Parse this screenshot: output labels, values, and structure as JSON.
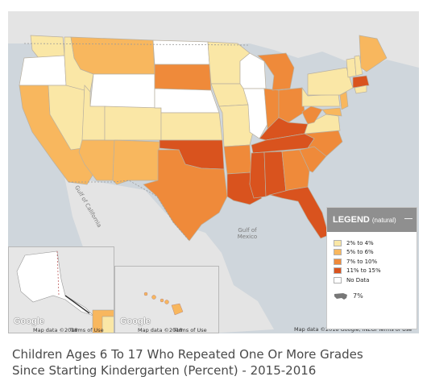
{
  "map": {
    "water_labels": {
      "gulf_mexico": "Gulf of\nMexico",
      "gulf_california": "Gulf of California"
    },
    "attribution_main": "Map data ©2018 Google, INEGI   Terms of Use",
    "attribution_ak": "Map data ©2018",
    "attribution_hi": "Map data ©2018",
    "terms_ak": "Terms of Use",
    "terms_hi": "Terms of Use",
    "google_logo": "Google",
    "colors": {
      "c1": "#fae7a6",
      "c2": "#f8b75e",
      "c3": "#ef8a3a",
      "c4": "#d9531e",
      "nodata": "#ffffff"
    }
  },
  "legend": {
    "title": "LEGEND",
    "subtitle": "(natural)",
    "collapse_icon": "minus-icon",
    "items": [
      {
        "label": "2% to 4%",
        "color": "#fae7a6"
      },
      {
        "label": "5% to 6%",
        "color": "#f8b75e"
      },
      {
        "label": "7% to 10%",
        "color": "#ef8a3a"
      },
      {
        "label": "11% to 15%",
        "color": "#d9531e"
      },
      {
        "label": "No Data",
        "color": "#ffffff"
      }
    ],
    "us_average": "7%",
    "us_icon": "us-map-icon"
  },
  "caption": {
    "line1": "Children Ages 6 To 17 Who Repeated One Or More Grades",
    "line2": "Since Starting Kindergarten (Percent) - 2015-2016"
  }
}
